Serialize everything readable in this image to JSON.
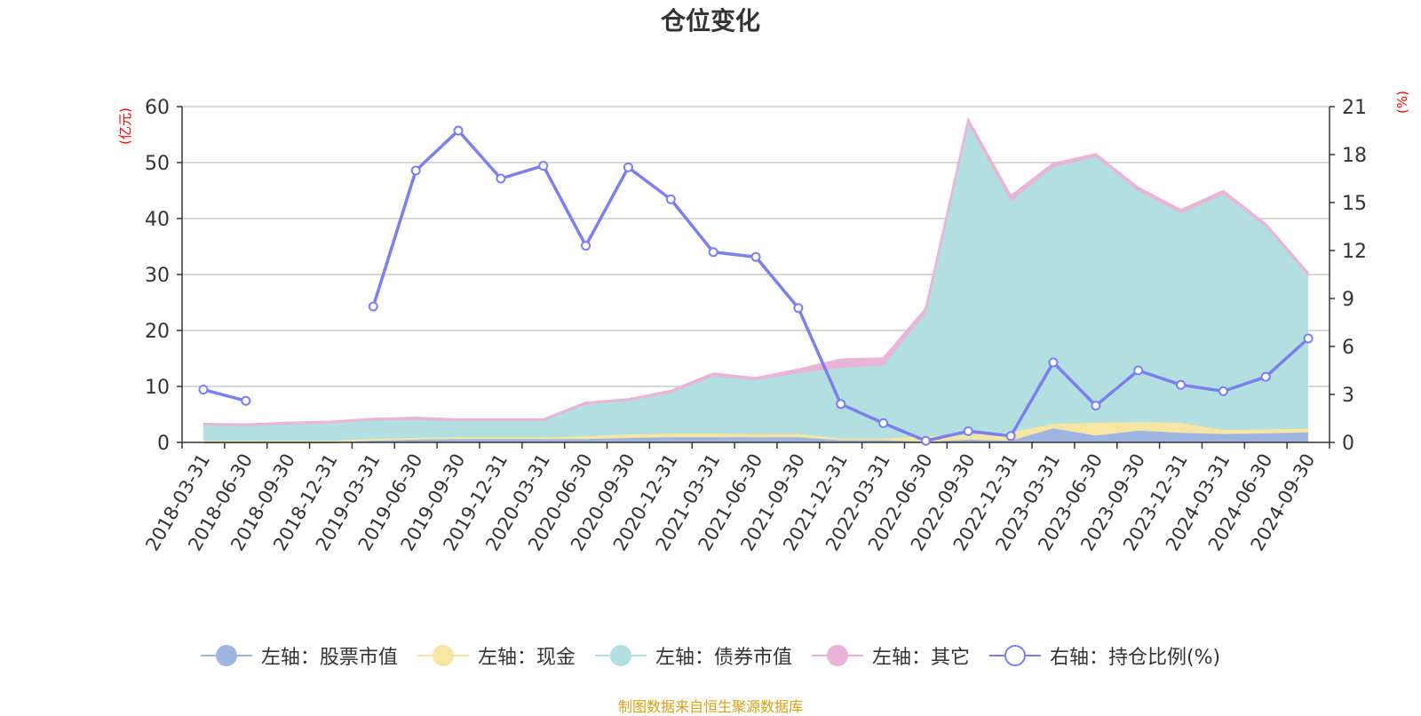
{
  "chart_data": {
    "type": "area",
    "title": "仓位变化",
    "y_left_label": "(亿元)",
    "y_right_label": "(%)",
    "y_left_lim": [
      0,
      60
    ],
    "y_left_ticks": [
      "0",
      "10",
      "20",
      "30",
      "40",
      "50",
      "60"
    ],
    "y_right_lim": [
      0,
      21
    ],
    "y_right_ticks": [
      "0",
      "3",
      "6",
      "9",
      "12",
      "15",
      "18",
      "21"
    ],
    "grid": true,
    "legend_position": "bottom",
    "categories": [
      "2018-03-31",
      "2018-06-30",
      "2018-09-30",
      "2018-12-31",
      "2019-03-31",
      "2019-06-30",
      "2019-09-30",
      "2019-12-31",
      "2020-03-31",
      "2020-06-30",
      "2020-09-30",
      "2020-12-31",
      "2021-03-31",
      "2021-06-30",
      "2021-09-30",
      "2021-12-31",
      "2022-03-31",
      "2022-06-30",
      "2022-09-30",
      "2022-12-31",
      "2023-03-31",
      "2023-06-30",
      "2023-09-30",
      "2023-12-31",
      "2024-03-31",
      "2024-06-30",
      "2024-09-30"
    ],
    "series": [
      {
        "name": "左轴：股票市值",
        "axis": "left",
        "stack": true,
        "color": "#9db5e0",
        "values": [
          0,
          0,
          0,
          0,
          0.3,
          0.5,
          0.6,
          0.6,
          0.6,
          0.6,
          0.8,
          0.9,
          0.9,
          0.9,
          0.9,
          0.4,
          0.4,
          0.1,
          0.5,
          0.3,
          2.5,
          1.2,
          2.1,
          1.7,
          1.5,
          1.6,
          1.8
        ]
      },
      {
        "name": "左轴：现金",
        "axis": "left",
        "stack": true,
        "color": "#f7e6a3",
        "values": [
          0.3,
          0.3,
          0.3,
          0.3,
          0.3,
          0.3,
          0.3,
          0.3,
          0.3,
          0.5,
          0.6,
          0.7,
          0.7,
          0.6,
          0.6,
          0.3,
          0.3,
          1.0,
          0.8,
          1.5,
          0.8,
          2.3,
          1.5,
          1.8,
          0.7,
          0.7,
          0.7
        ]
      },
      {
        "name": "左轴：债券市值",
        "axis": "left",
        "stack": true,
        "color": "#b2dfe0",
        "values": [
          2.8,
          2.6,
          2.9,
          3.1,
          3.3,
          3.2,
          2.9,
          2.9,
          2.9,
          5.7,
          6.0,
          7.2,
          10.2,
          9.6,
          10.9,
          12.6,
          13.1,
          22.0,
          55.5,
          41.3,
          45.9,
          47.5,
          41.3,
          37.4,
          42.1,
          36.2,
          27.2
        ]
      },
      {
        "name": "左轴：其它",
        "axis": "left",
        "stack": true,
        "color": "#e9b4d8",
        "values": [
          0.2,
          0.3,
          0.3,
          0.3,
          0.3,
          0.4,
          0.3,
          0.3,
          0.3,
          0.3,
          0.3,
          0.4,
          0.5,
          0.4,
          0.6,
          1.5,
          1.2,
          0.8,
          0.8,
          0.9,
          0.6,
          0.5,
          0.6,
          0.6,
          0.6,
          0.5,
          0.5
        ]
      },
      {
        "name": "右轴：持仓比例(%)",
        "axis": "right",
        "type": "line",
        "color": "#7b7ff0",
        "values": [
          3.3,
          2.6,
          null,
          null,
          8.5,
          17.0,
          19.5,
          16.5,
          17.3,
          12.3,
          17.2,
          15.2,
          11.9,
          11.6,
          8.4,
          2.4,
          1.2,
          0.1,
          0.7,
          0.4,
          5.0,
          2.3,
          4.5,
          3.6,
          3.2,
          4.1,
          6.5
        ]
      }
    ],
    "source_note": "制图数据来自恒生聚源数据库"
  }
}
